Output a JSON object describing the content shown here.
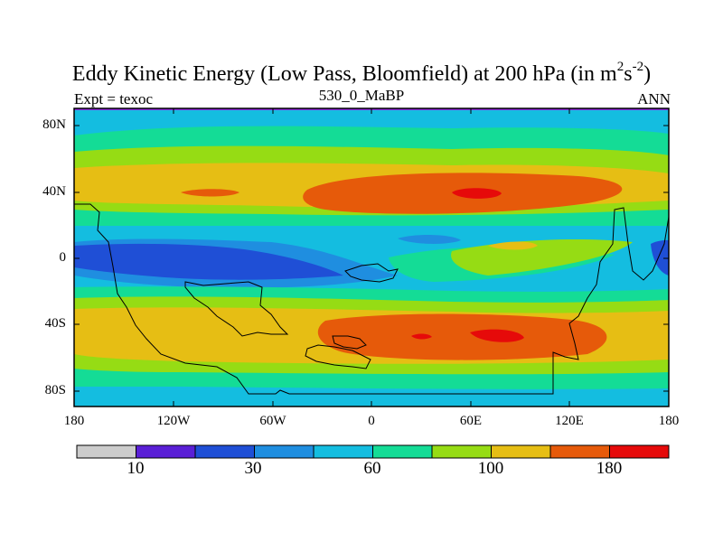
{
  "title": {
    "main": "Eddy Kinetic Energy (Low Pass, Bloomfield) at 200 hPa (in m",
    "sup1": "2",
    "mid": "s",
    "sup2": "-2",
    "end": ")"
  },
  "subtitle": {
    "left": "Expt = texoc",
    "center": "530_0_MaBP",
    "right": "ANN"
  },
  "axes": {
    "y_ticks": [
      "80N",
      "40N",
      "0",
      "40S",
      "80S"
    ],
    "x_ticks": [
      "180",
      "120W",
      "60W",
      "0",
      "60E",
      "120E",
      "180"
    ]
  },
  "colorbar": {
    "colors": [
      "#cccccc",
      "#5a1fd6",
      "#1f4fd6",
      "#1f8ee0",
      "#14bde0",
      "#14dc96",
      "#96dc14",
      "#e6be14",
      "#e65a0a",
      "#e60a0a"
    ],
    "labels": [
      "10",
      "30",
      "60",
      "100",
      "180"
    ]
  },
  "colors": {
    "band_top_line": "#8c2fe0",
    "coastline": "#000000"
  }
}
